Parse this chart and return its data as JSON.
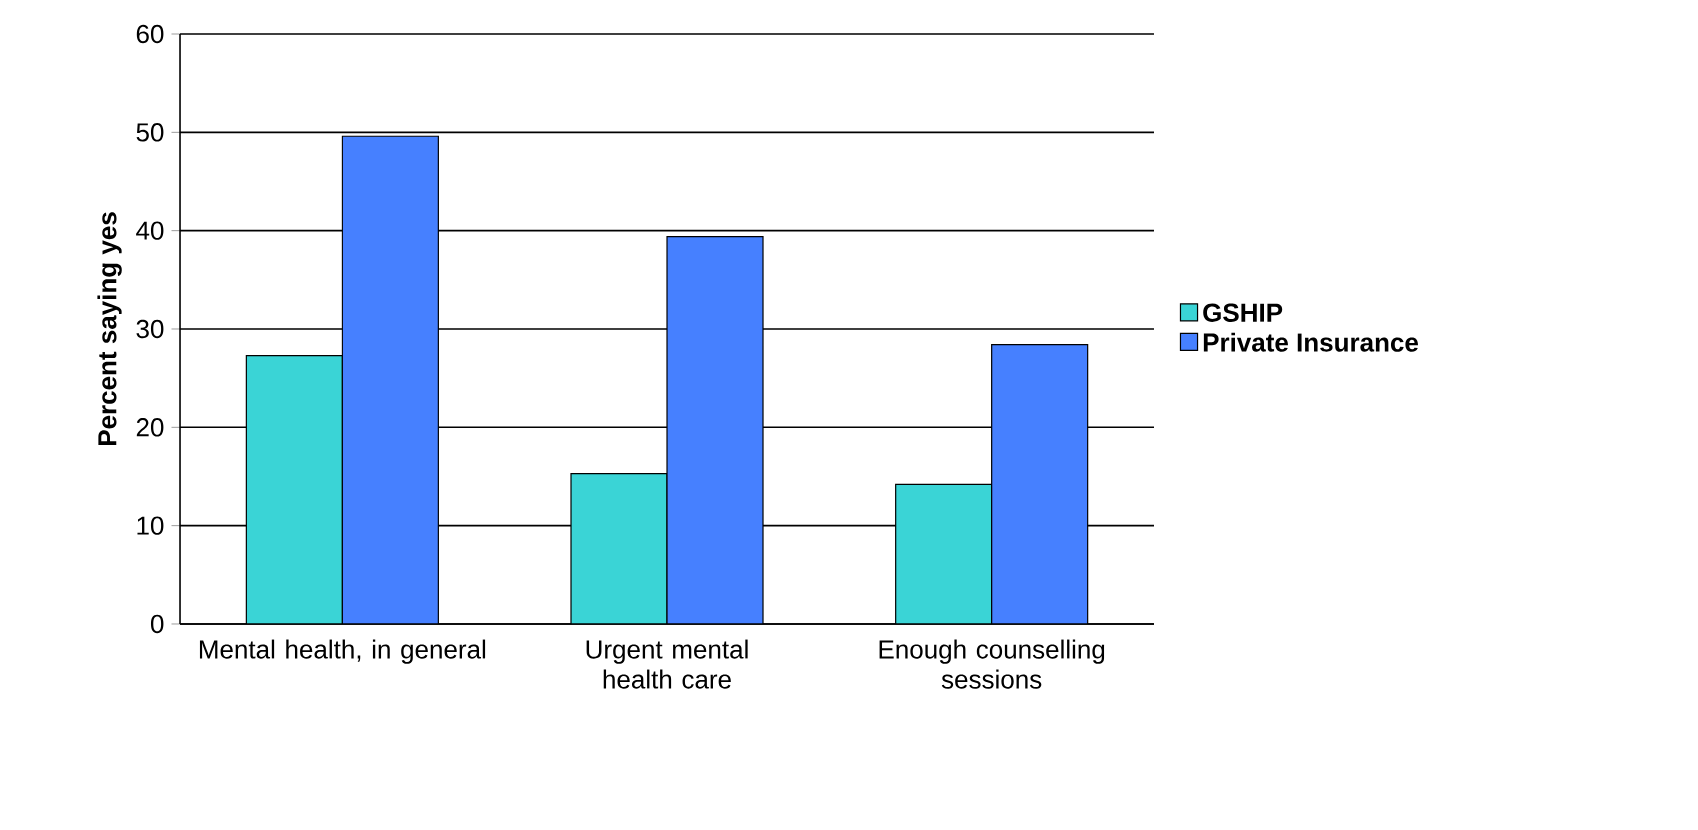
{
  "chart_data": {
    "type": "bar",
    "ylabel": "Percent saying yes",
    "categories": [
      "Mental health, in general",
      "Urgent mental health care",
      "Enough counselling sessions"
    ],
    "series": [
      {
        "name": "GSHIP",
        "color": "#3ad4d6",
        "values": [
          27.3,
          15.3,
          14.2
        ]
      },
      {
        "name": "Private Insurance",
        "color": "#4680ff",
        "values": [
          49.6,
          39.4,
          28.4
        ]
      }
    ],
    "ylim": [
      0,
      60
    ],
    "yticks": [
      0,
      10,
      20,
      30,
      40,
      50,
      60
    ],
    "grid": "y",
    "legend": "right"
  }
}
